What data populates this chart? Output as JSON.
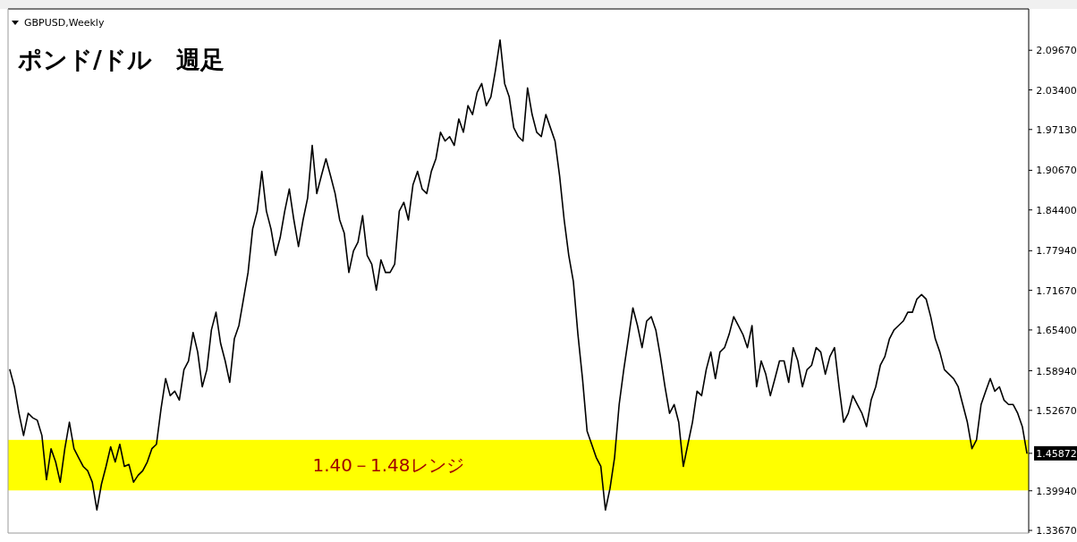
{
  "chart_data": {
    "type": "line",
    "title": "ポンド/ドル　週足",
    "annotations": [
      "GBPUSD,Weekly"
    ],
    "categories": [
      null,
      null,
      null,
      null,
      null,
      null,
      null,
      null,
      null,
      null,
      null,
      null,
      null,
      null,
      null,
      null,
      null,
      null,
      null,
      null,
      null,
      null,
      null,
      null,
      null,
      null,
      null,
      null,
      null,
      null,
      null,
      null,
      null,
      null,
      null,
      null,
      null,
      null,
      null,
      null,
      null,
      null,
      null,
      null,
      null,
      null,
      null,
      null,
      null,
      null,
      null,
      null,
      null,
      null,
      null,
      null,
      null,
      null,
      null,
      null,
      null,
      null,
      null,
      null,
      null,
      null,
      null,
      null,
      null,
      null,
      null,
      null,
      null,
      null,
      null,
      null,
      null,
      null,
      null,
      null,
      null,
      null,
      null,
      null,
      null,
      null,
      null,
      null,
      null,
      null,
      null,
      null,
      null,
      null,
      null,
      null,
      null,
      null,
      null,
      null,
      null,
      null,
      null,
      null,
      null,
      null,
      null,
      null,
      null,
      null,
      null,
      null,
      null,
      null,
      null,
      null,
      null,
      null,
      null,
      null,
      null,
      null,
      null,
      null,
      null,
      null,
      null,
      null,
      null,
      null,
      null,
      null,
      null,
      null,
      null,
      null,
      null,
      null,
      null,
      null,
      null,
      null,
      null,
      null,
      null,
      null,
      null,
      null,
      null,
      null,
      null,
      null,
      null,
      null,
      null,
      null,
      null,
      null,
      null,
      null,
      null,
      null,
      null,
      null,
      null,
      null,
      null,
      null,
      null,
      null,
      null,
      null,
      null,
      null,
      null,
      null,
      null,
      null,
      null,
      null,
      null,
      null,
      null,
      null,
      null,
      null,
      null,
      null,
      null,
      null,
      null,
      null,
      null,
      null,
      null,
      null,
      null,
      null,
      null,
      null,
      null,
      null,
      null,
      null,
      null,
      null,
      null,
      null,
      null,
      null,
      null,
      null,
      null,
      null,
      null,
      null,
      null,
      null,
      null,
      null,
      null,
      null,
      null
    ],
    "values": [
      1.591,
      1.564,
      1.522,
      1.487,
      1.522,
      1.515,
      1.511,
      1.487,
      1.417,
      1.466,
      1.445,
      1.413,
      1.466,
      1.508,
      1.466,
      1.452,
      1.438,
      1.431,
      1.413,
      1.369,
      1.41,
      1.438,
      1.469,
      1.445,
      1.473,
      1.438,
      1.441,
      1.413,
      1.424,
      1.431,
      1.445,
      1.466,
      1.473,
      1.529,
      1.577,
      1.55,
      1.557,
      1.543,
      1.591,
      1.605,
      1.65,
      1.619,
      1.564,
      1.591,
      1.654,
      1.682,
      1.633,
      1.605,
      1.571,
      1.64,
      1.661,
      1.703,
      1.745,
      1.814,
      1.842,
      1.905,
      1.842,
      1.814,
      1.772,
      1.8,
      1.842,
      1.877,
      1.828,
      1.786,
      1.828,
      1.863,
      1.946,
      1.87,
      1.898,
      1.925,
      1.898,
      1.87,
      1.828,
      1.807,
      1.745,
      1.779,
      1.793,
      1.835,
      1.772,
      1.758,
      1.717,
      1.765,
      1.745,
      1.745,
      1.758,
      1.842,
      1.856,
      1.828,
      1.884,
      1.905,
      1.877,
      1.87,
      1.905,
      1.925,
      1.967,
      1.953,
      1.96,
      1.946,
      1.988,
      1.967,
      2.009,
      1.995,
      2.03,
      2.044,
      2.009,
      2.023,
      2.065,
      2.113,
      2.044,
      2.023,
      1.974,
      1.96,
      1.953,
      2.037,
      1.995,
      1.967,
      1.96,
      1.995,
      1.974,
      1.953,
      1.898,
      1.828,
      1.772,
      1.731,
      1.647,
      1.577,
      1.494,
      1.473,
      1.452,
      1.438,
      1.369,
      1.403,
      1.452,
      1.536,
      1.591,
      1.64,
      1.689,
      1.661,
      1.626,
      1.668,
      1.675,
      1.654,
      1.612,
      1.564,
      1.522,
      1.536,
      1.508,
      1.438,
      1.473,
      1.508,
      1.557,
      1.55,
      1.591,
      1.619,
      1.577,
      1.619,
      1.626,
      1.647,
      1.675,
      1.661,
      1.647,
      1.626,
      1.661,
      1.564,
      1.605,
      1.584,
      1.55,
      1.577,
      1.605,
      1.605,
      1.571,
      1.626,
      1.605,
      1.564,
      1.591,
      1.598,
      1.626,
      1.619,
      1.584,
      1.612,
      1.626,
      1.564,
      1.508,
      1.522,
      1.55,
      1.536,
      1.522,
      1.501,
      1.543,
      1.564,
      1.598,
      1.612,
      1.64,
      1.654,
      1.661,
      1.668,
      1.682,
      1.682,
      1.703,
      1.71,
      1.703,
      1.675,
      1.64,
      1.619,
      1.591,
      1.584,
      1.577,
      1.564,
      1.536,
      1.508,
      1.466,
      1.48,
      1.536,
      1.557,
      1.577,
      1.557,
      1.564,
      1.543,
      1.536,
      1.536,
      1.522,
      1.501,
      1.459
    ],
    "color": "#000000",
    "ylim": [
      1.3325,
      2.1593
    ],
    "yticks": [
      {
        "value": 2.0967,
        "label": "2.09670"
      },
      {
        "value": 2.034,
        "label": "2.03400"
      },
      {
        "value": 1.9713,
        "label": "1.97130"
      },
      {
        "value": 1.9067,
        "label": "1.90670"
      },
      {
        "value": 1.844,
        "label": "1.84400"
      },
      {
        "value": 1.7794,
        "label": "1.77940"
      },
      {
        "value": 1.7167,
        "label": "1.71670"
      },
      {
        "value": 1.654,
        "label": "1.65400"
      },
      {
        "value": 1.5894,
        "label": "1.58940"
      },
      {
        "value": 1.5267,
        "label": "1.52670"
      },
      1.45872,
      {
        "value": 1.3994,
        "label": "1.39940"
      },
      {
        "value": 1.3367,
        "label": "1.33670"
      }
    ],
    "bands": [
      {
        "axis": "y",
        "from": 1.4,
        "to": 1.48,
        "label": "1.40－1.48レンジ",
        "color": "#ffff00"
      }
    ]
  }
}
